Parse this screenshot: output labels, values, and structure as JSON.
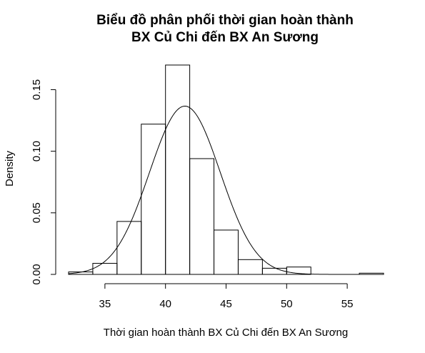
{
  "chart_data": {
    "type": "bar",
    "title_line1": "Biểu đồ phân phối thời gian hoàn thành",
    "title_line2": "BX Củ Chi đến BX An Sương",
    "xlabel": "Thời gian hoàn thành BX Củ Chi đến BX An Sương",
    "ylabel": "Density",
    "bins": [
      {
        "x0": 32,
        "x1": 34,
        "density": 0.002
      },
      {
        "x0": 34,
        "x1": 36,
        "density": 0.009
      },
      {
        "x0": 36,
        "x1": 38,
        "density": 0.043
      },
      {
        "x0": 38,
        "x1": 40,
        "density": 0.122
      },
      {
        "x0": 40,
        "x1": 42,
        "density": 0.17
      },
      {
        "x0": 42,
        "x1": 44,
        "density": 0.094
      },
      {
        "x0": 44,
        "x1": 46,
        "density": 0.036
      },
      {
        "x0": 46,
        "x1": 48,
        "density": 0.012
      },
      {
        "x0": 48,
        "x1": 50,
        "density": 0.005
      },
      {
        "x0": 50,
        "x1": 52,
        "density": 0.006
      },
      {
        "x0": 52,
        "x1": 54,
        "density": 0.0
      },
      {
        "x0": 54,
        "x1": 56,
        "density": 0.0
      },
      {
        "x0": 56,
        "x1": 58,
        "density": 0.001
      }
    ],
    "normal_curve": {
      "mean": 41.6,
      "sd": 2.92
    },
    "xlim": [
      32,
      58
    ],
    "ylim": [
      0,
      0.17
    ],
    "x_ticks": [
      35,
      40,
      45,
      50,
      55
    ],
    "y_ticks": [
      "0.00",
      "0.05",
      "0.10",
      "0.15"
    ],
    "grid": false
  }
}
